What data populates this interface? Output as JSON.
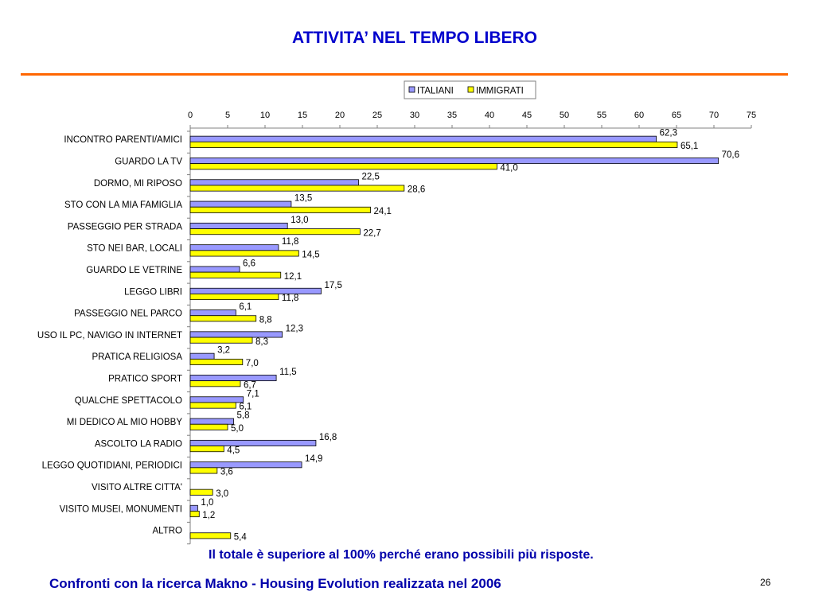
{
  "slide": {
    "title": "ATTIVITA’ NEL TEMPO LIBERO",
    "note": "Il totale è superiore al 100% perché erano possibili più risposte.",
    "footer": "Confronti con la ricerca Makno -  Housing Evolution realizzata nel 2006",
    "page_number": "26",
    "colors": {
      "title": "#0000cc",
      "rule": "#ff6600",
      "note": "#0000aa"
    }
  },
  "chart_data": {
    "type": "bar",
    "orientation": "horizontal",
    "title": "",
    "xlabel": "",
    "ylabel": "",
    "xlim": [
      0,
      75
    ],
    "xticks": [
      0,
      5,
      10,
      15,
      20,
      25,
      30,
      35,
      40,
      45,
      50,
      55,
      60,
      65,
      70,
      75
    ],
    "x_axis_position": "top",
    "grid": false,
    "legend_position": "top-right",
    "categories": [
      "INCONTRO PARENTI/AMICI",
      "GUARDO LA TV",
      "DORMO, MI RIPOSO",
      "STO CON LA MIA FAMIGLIA",
      "PASSEGGIO PER STRADA",
      "STO NEI BAR, LOCALI",
      "GUARDO LE VETRINE",
      "LEGGO LIBRI",
      "PASSEGGIO NEL PARCO",
      "USO IL PC, NAVIGO IN INTERNET",
      "PRATICA RELIGIOSA",
      "PRATICO SPORT",
      "QUALCHE SPETTACOLO",
      "MI DEDICO AL MIO HOBBY",
      "ASCOLTO LA RADIO",
      "LEGGO QUOTIDIANI, PERIODICI",
      "VISITO ALTRE CITTA'",
      "VISITO MUSEI, MONUMENTI",
      "ALTRO"
    ],
    "series": [
      {
        "name": "ITALIANI",
        "color": "#9999ff",
        "values": [
          62.3,
          70.6,
          22.5,
          13.5,
          13.0,
          11.8,
          6.6,
          17.5,
          6.1,
          12.3,
          3.2,
          11.5,
          7.1,
          5.8,
          16.8,
          14.9,
          null,
          1.0,
          null
        ],
        "labels": [
          "62,3",
          "70,6",
          "22,5",
          "13,5",
          "13,0",
          "11,8",
          "6,6",
          "17,5",
          "6,1",
          "12,3",
          "3,2",
          "11,5",
          "7,1",
          "5,8",
          "16,8",
          "14,9",
          "",
          "1,0",
          ""
        ]
      },
      {
        "name": "IMMIGRATI",
        "color": "#ffff00",
        "values": [
          65.1,
          41.0,
          28.6,
          24.1,
          22.7,
          14.5,
          12.1,
          11.8,
          8.8,
          8.3,
          7.0,
          6.7,
          6.1,
          5.0,
          4.5,
          3.6,
          3.0,
          1.2,
          5.4
        ],
        "labels": [
          "65,1",
          "41,0",
          "28,6",
          "24,1",
          "22,7",
          "14,5",
          "12,1",
          "11,8",
          "8,8",
          "8,3",
          "7,0",
          "6,7",
          "6,1",
          "5,0",
          "4,5",
          "3,6",
          "3,0",
          "1,2",
          "5,4"
        ]
      }
    ]
  }
}
